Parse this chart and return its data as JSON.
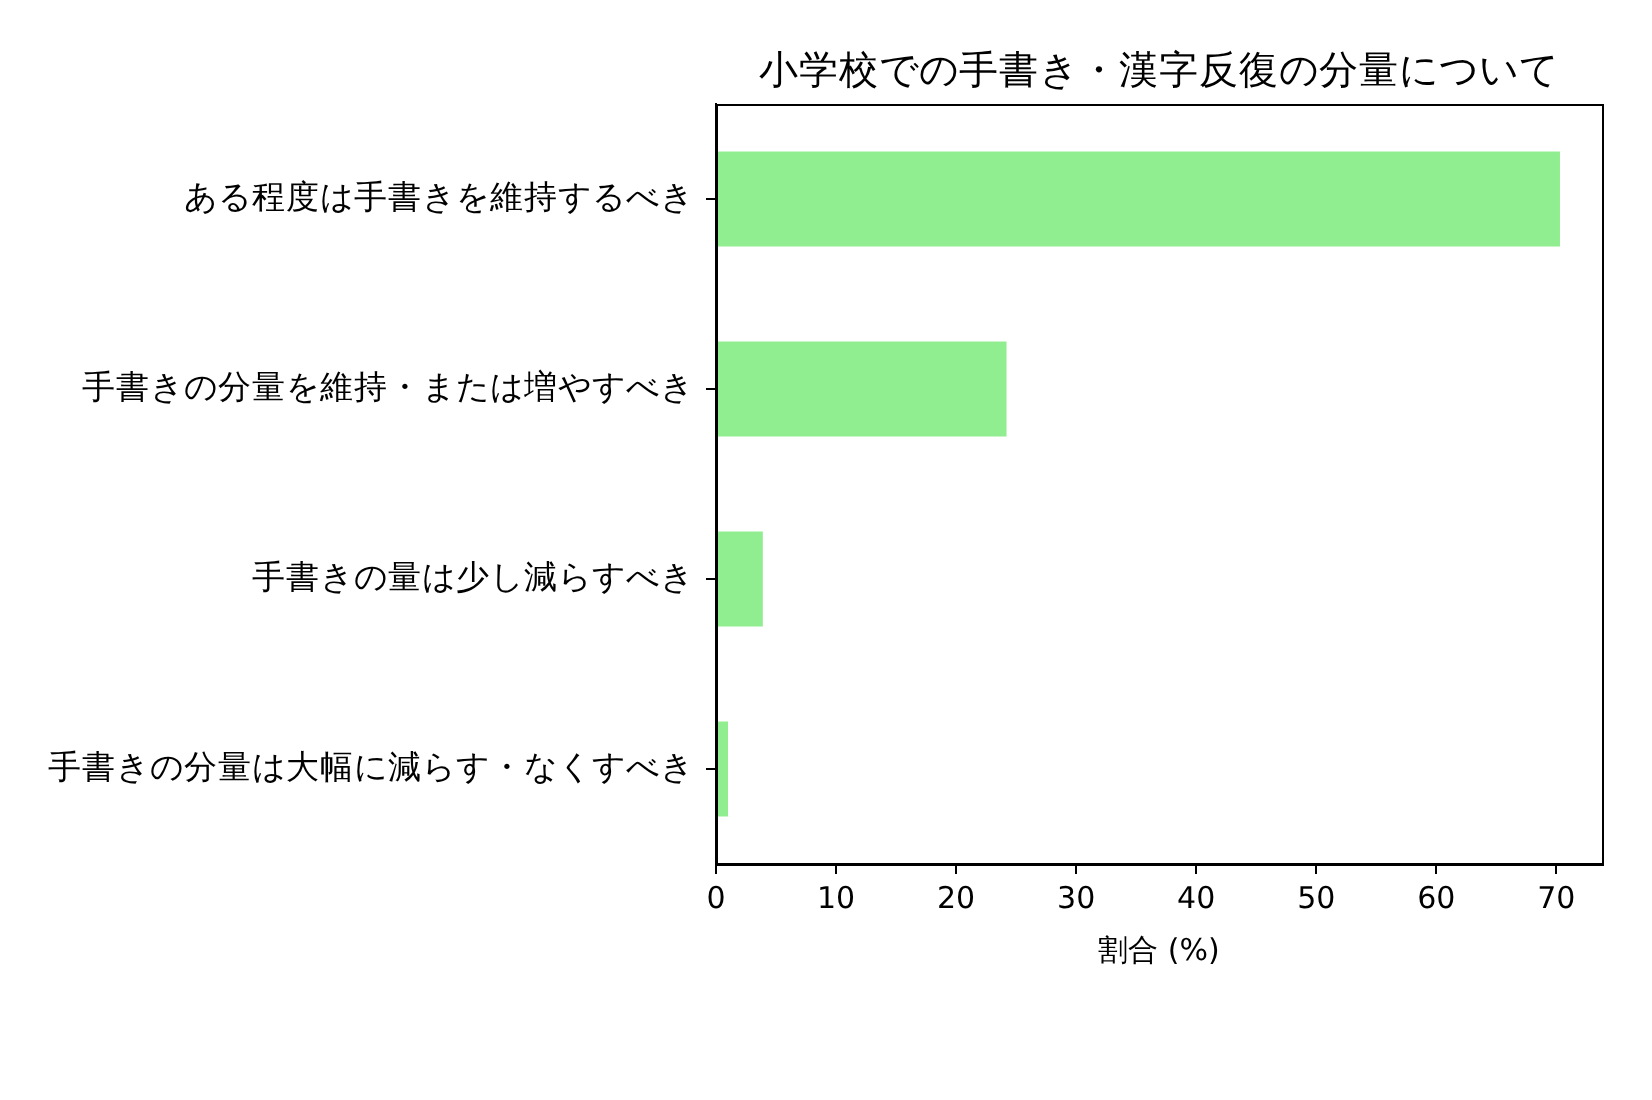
{
  "chart_data": {
    "type": "bar",
    "orientation": "horizontal",
    "title": "小学校での手書き・漢字反復の分量について",
    "xlabel": "割合 (%)",
    "categories": [
      "ある程度は手書きを維持するべき",
      "手書きの分量を維持・または増やすべき",
      "手書きの量は少し減らすべき",
      "手書きの分量は大幅に減らす・なくすべき"
    ],
    "values": [
      70.3,
      24.2,
      3.9,
      1.0
    ],
    "color": "#90ee90",
    "xlim": [
      0,
      73.8
    ],
    "xticks": [
      0,
      10,
      20,
      30,
      40,
      50,
      60,
      70
    ],
    "grid": false
  }
}
